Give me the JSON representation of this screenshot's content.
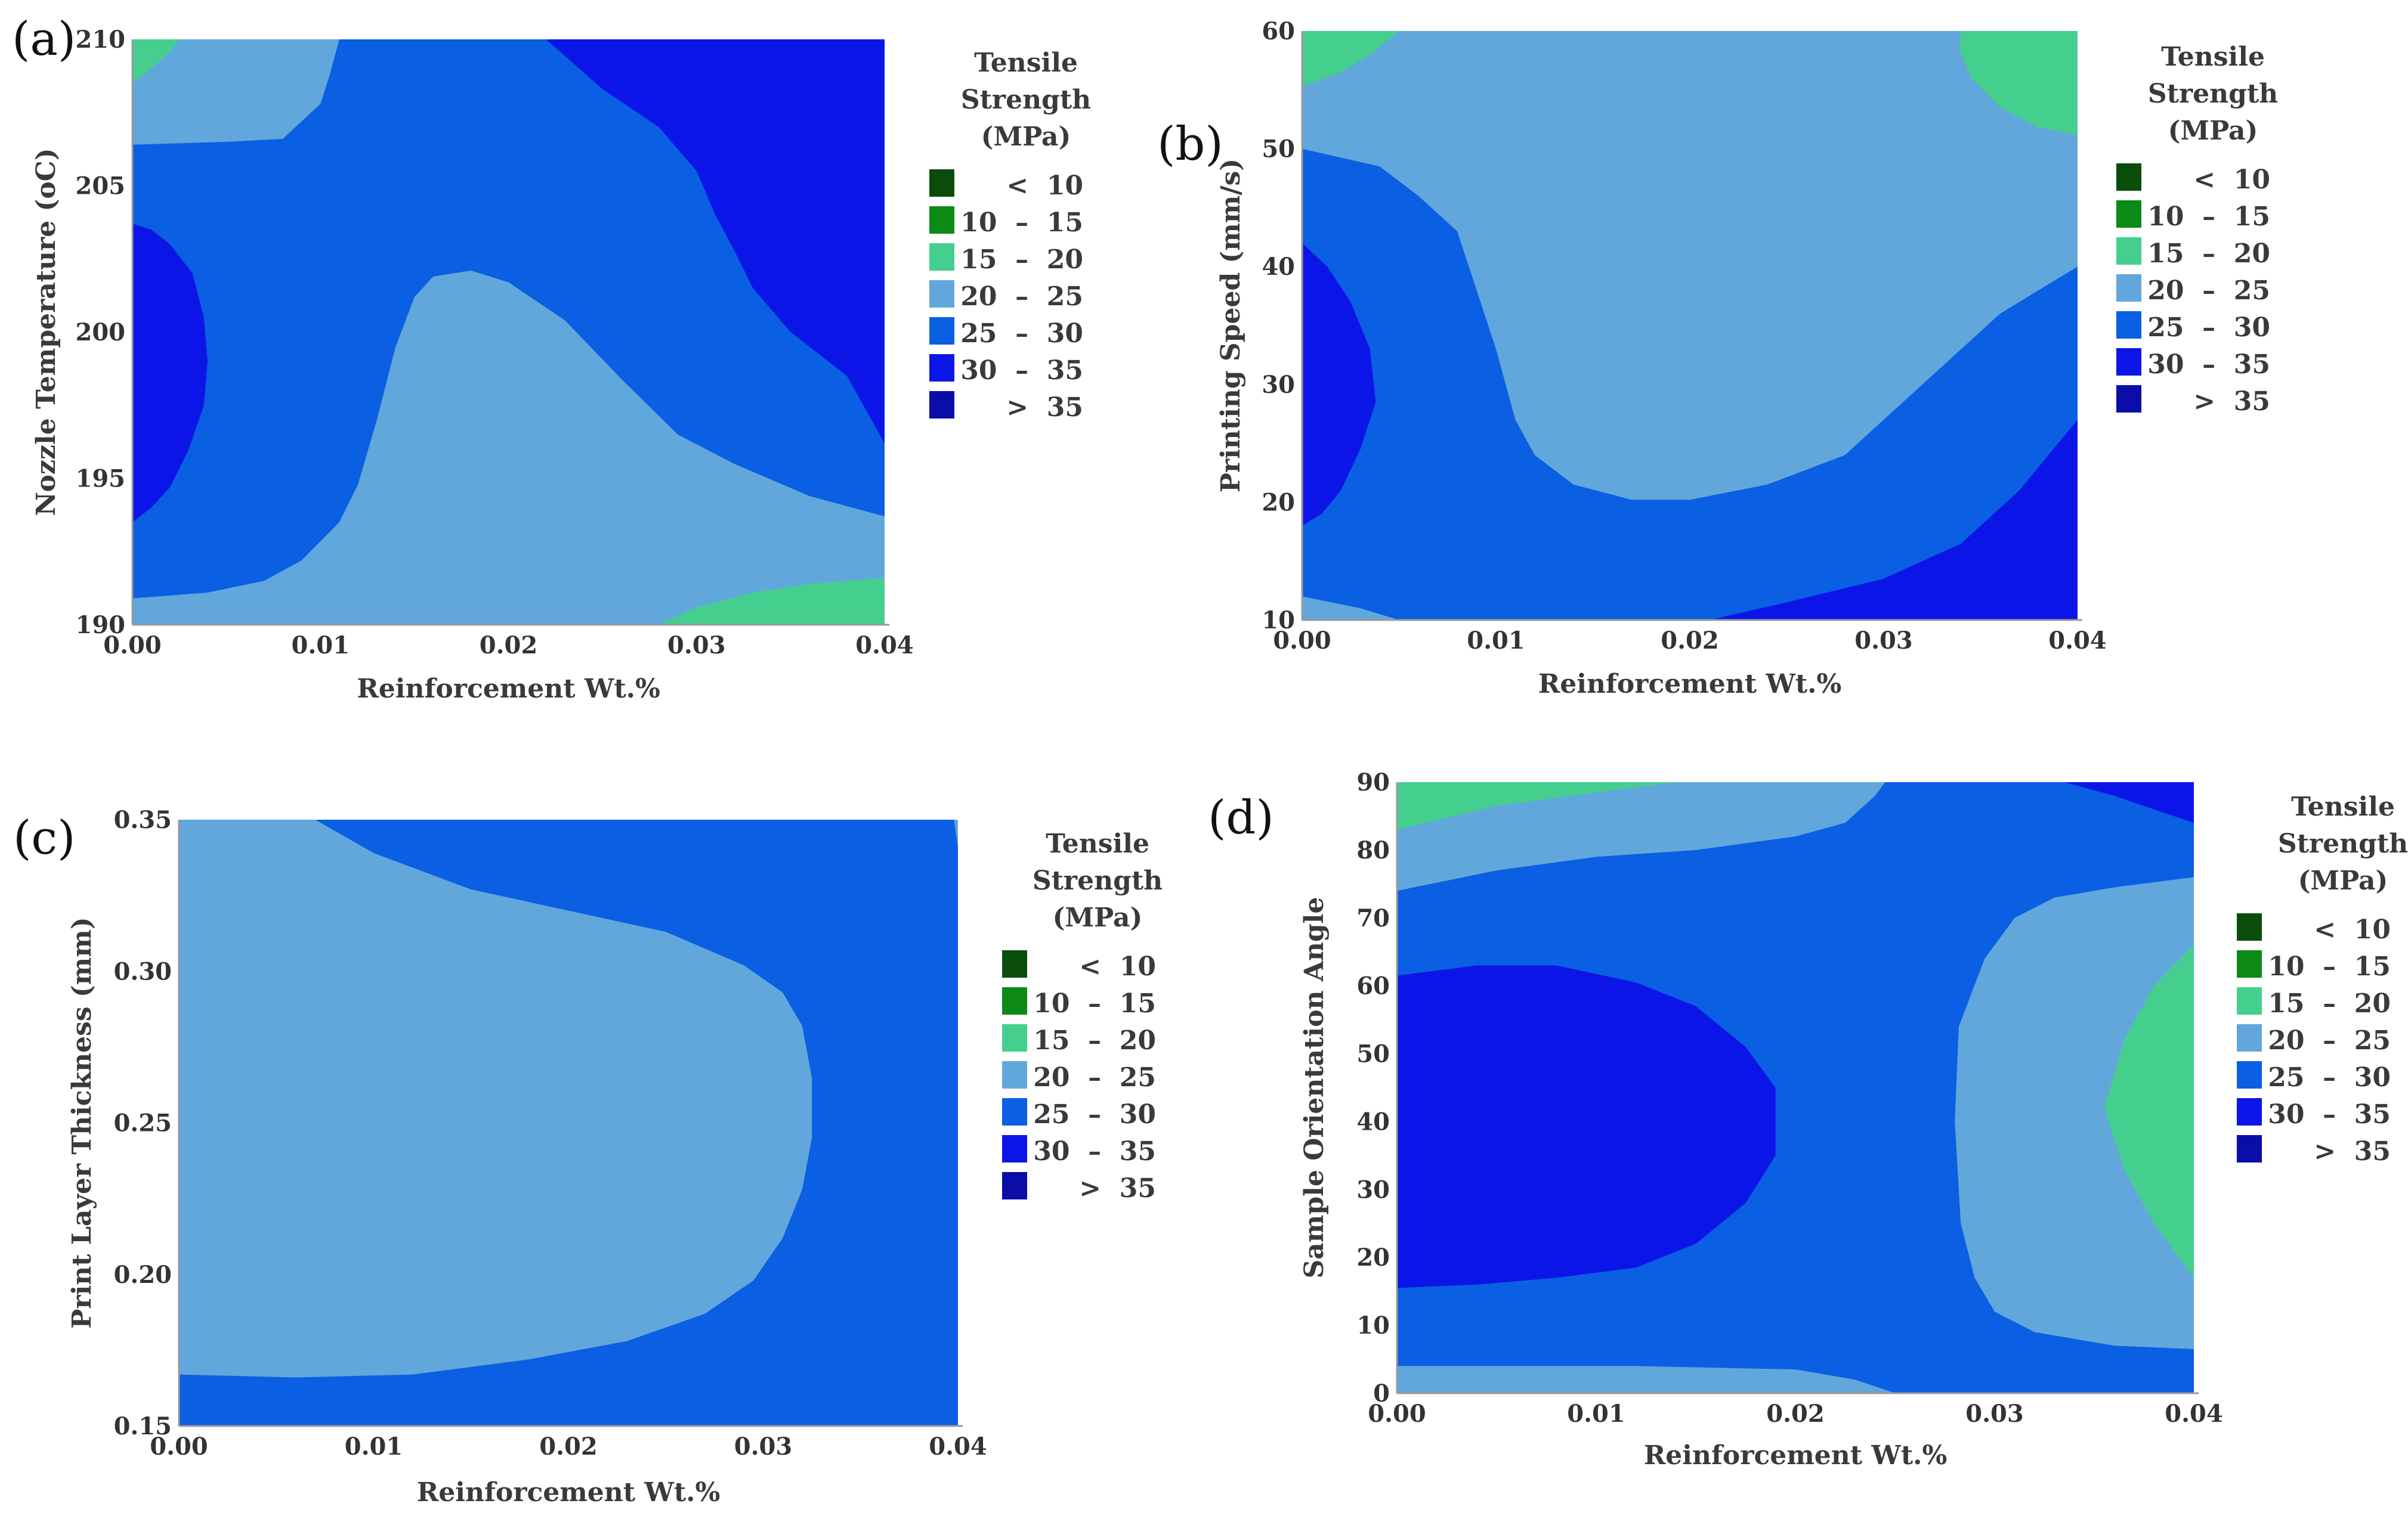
{
  "chart_data": [
    {
      "type": "contour",
      "panel": "(a)",
      "xlabel": "Reinforcement Wt.%",
      "ylabel": "Nozzle Temperature (oC)",
      "x_ticks": [
        "0.00",
        "0.01",
        "0.02",
        "0.03",
        "0.04"
      ],
      "y_ticks": [
        "190",
        "195",
        "200",
        "205",
        "210"
      ],
      "xlim": [
        0,
        0.04
      ],
      "ylim": [
        190,
        210
      ],
      "legend_title": [
        "Tensile",
        "Strength",
        "(MPa)"
      ],
      "regions": [
        {
          "level": "20 – 25",
          "polygon": [
            [
              0,
              190
            ],
            [
              0.04,
              190
            ],
            [
              0.04,
              210
            ],
            [
              0,
              210
            ]
          ]
        },
        {
          "level": "25 – 30",
          "polygon": [
            [
              0,
              190.9
            ],
            [
              0.004,
              191.1
            ],
            [
              0.007,
              191.5
            ],
            [
              0.009,
              192.2
            ],
            [
              0.011,
              193.5
            ],
            [
              0.012,
              194.8
            ],
            [
              0.013,
              197
            ],
            [
              0.014,
              199.5
            ],
            [
              0.015,
              201.2
            ],
            [
              0.016,
              201.9
            ],
            [
              0.018,
              202.1
            ],
            [
              0.02,
              201.7
            ],
            [
              0.023,
              200.4
            ],
            [
              0.026,
              198.4
            ],
            [
              0.029,
              196.5
            ],
            [
              0.032,
              195.5
            ],
            [
              0.036,
              194.4
            ],
            [
              0.04,
              193.7
            ],
            [
              0.04,
              210
            ],
            [
              0.011,
              210
            ],
            [
              0.0105,
              208.8
            ],
            [
              0.01,
              207.8
            ],
            [
              0.008,
              206.6
            ],
            [
              0.005,
              206.5
            ],
            [
              0,
              206.4
            ]
          ]
        },
        {
          "level": "30 – 35",
          "polygon": [
            [
              0.022,
              210
            ],
            [
              0.04,
              210
            ],
            [
              0.04,
              196.2
            ],
            [
              0.038,
              198.5
            ],
            [
              0.035,
              200
            ],
            [
              0.033,
              201.5
            ],
            [
              0.032,
              202.8
            ],
            [
              0.031,
              204
            ],
            [
              0.03,
              205.5
            ],
            [
              0.028,
              207
            ],
            [
              0.025,
              208.3
            ]
          ]
        },
        {
          "level": "30 – 35",
          "polygon": [
            [
              0,
              193.5
            ],
            [
              0.001,
              194
            ],
            [
              0.002,
              194.7
            ],
            [
              0.003,
              196
            ],
            [
              0.0038,
              197.5
            ],
            [
              0.004,
              199
            ],
            [
              0.0038,
              200.5
            ],
            [
              0.0032,
              202
            ],
            [
              0.002,
              203
            ],
            [
              0.001,
              203.5
            ],
            [
              0,
              203.7
            ]
          ]
        },
        {
          "level": "15 – 20",
          "polygon": [
            [
              0,
              208.5
            ],
            [
              0.001,
              209
            ],
            [
              0.002,
              209.6
            ],
            [
              0.0025,
              210
            ],
            [
              0,
              210
            ]
          ]
        },
        {
          "level": "15 – 20",
          "polygon": [
            [
              0.028,
              190
            ],
            [
              0.03,
              190.6
            ],
            [
              0.033,
              191.1
            ],
            [
              0.036,
              191.4
            ],
            [
              0.04,
              191.6
            ],
            [
              0.04,
              190
            ]
          ]
        }
      ]
    },
    {
      "type": "contour",
      "panel": "(b)",
      "xlabel": "Reinforcement Wt.%",
      "ylabel": "Printing Speed (mm/s)",
      "x_ticks": [
        "0.00",
        "0.01",
        "0.02",
        "0.03",
        "0.04"
      ],
      "y_ticks": [
        "10",
        "20",
        "30",
        "40",
        "50",
        "60"
      ],
      "xlim": [
        0,
        0.04
      ],
      "ylim": [
        10,
        60
      ],
      "legend_title": [
        "Tensile",
        "Strength",
        "(MPa)"
      ],
      "regions": [
        {
          "level": "20 – 25",
          "polygon": [
            [
              0,
              10
            ],
            [
              0.04,
              10
            ],
            [
              0.04,
              60
            ],
            [
              0,
              60
            ]
          ]
        },
        {
          "level": "25 – 30",
          "polygon": [
            [
              0,
              12
            ],
            [
              0.003,
              11
            ],
            [
              0.005,
              10
            ],
            [
              0.04,
              10
            ],
            [
              0.04,
              40
            ],
            [
              0.036,
              36
            ],
            [
              0.032,
              30
            ],
            [
              0.028,
              24
            ],
            [
              0.024,
              21.5
            ],
            [
              0.02,
              20.2
            ],
            [
              0.017,
              20.2
            ],
            [
              0.014,
              21.5
            ],
            [
              0.012,
              24
            ],
            [
              0.011,
              27
            ],
            [
              0.01,
              33
            ],
            [
              0.009,
              38
            ],
            [
              0.008,
              43
            ],
            [
              0.006,
              46
            ],
            [
              0.004,
              48.5
            ],
            [
              0,
              50
            ]
          ]
        },
        {
          "level": "30 – 35",
          "polygon": [
            [
              0.021,
              10
            ],
            [
              0.025,
              11.5
            ],
            [
              0.03,
              13.5
            ],
            [
              0.034,
              16.5
            ],
            [
              0.037,
              21
            ],
            [
              0.04,
              27
            ],
            [
              0.04,
              10
            ]
          ]
        },
        {
          "level": "30 – 35",
          "polygon": [
            [
              0,
              18
            ],
            [
              0.001,
              19
            ],
            [
              0.002,
              21
            ],
            [
              0.003,
              24.5
            ],
            [
              0.0038,
              28.5
            ],
            [
              0.0035,
              33
            ],
            [
              0.0025,
              37
            ],
            [
              0.0013,
              40
            ],
            [
              0,
              42
            ]
          ]
        },
        {
          "level": "15 – 20",
          "polygon": [
            [
              0,
              55.3
            ],
            [
              0.002,
              56.5
            ],
            [
              0.0035,
              58
            ],
            [
              0.005,
              60
            ],
            [
              0,
              60
            ]
          ]
        },
        {
          "level": "15 – 20",
          "polygon": [
            [
              0.034,
              60
            ],
            [
              0.0339,
              58.5
            ],
            [
              0.0345,
              56
            ],
            [
              0.036,
              53.5
            ],
            [
              0.038,
              51.8
            ],
            [
              0.04,
              51.2
            ],
            [
              0.04,
              60
            ]
          ]
        }
      ]
    },
    {
      "type": "contour",
      "panel": "(c)",
      "xlabel": "Reinforcement Wt.%",
      "ylabel": "Print Layer Thickness (mm)",
      "x_ticks": [
        "0.00",
        "0.01",
        "0.02",
        "0.03",
        "0.04"
      ],
      "y_ticks": [
        "0.15",
        "0.20",
        "0.25",
        "0.30",
        "0.35"
      ],
      "xlim": [
        0,
        0.04
      ],
      "ylim": [
        0.15,
        0.35
      ],
      "legend_title": [
        "Tensile",
        "Strength",
        "(MPa)"
      ],
      "regions": [
        {
          "level": "25 – 30",
          "polygon": [
            [
              0,
              0.15
            ],
            [
              0.04,
              0.15
            ],
            [
              0.04,
              0.35
            ],
            [
              0,
              0.35
            ]
          ]
        },
        {
          "level": "20 – 25",
          "polygon": [
            [
              0,
              0.35
            ],
            [
              0.007,
              0.35
            ],
            [
              0.01,
              0.339
            ],
            [
              0.015,
              0.327
            ],
            [
              0.02,
              0.32
            ],
            [
              0.025,
              0.313
            ],
            [
              0.029,
              0.302
            ],
            [
              0.031,
              0.293
            ],
            [
              0.032,
              0.282
            ],
            [
              0.0325,
              0.265
            ],
            [
              0.0325,
              0.245
            ],
            [
              0.032,
              0.228
            ],
            [
              0.031,
              0.212
            ],
            [
              0.0295,
              0.198
            ],
            [
              0.027,
              0.187
            ],
            [
              0.023,
              0.178
            ],
            [
              0.018,
              0.172
            ],
            [
              0.012,
              0.167
            ],
            [
              0.006,
              0.166
            ],
            [
              0,
              0.167
            ]
          ]
        },
        {
          "level": "20 – 25",
          "polygon": [
            [
              0.0398,
              0.35
            ],
            [
              0.04,
              0.35
            ],
            [
              0.04,
              0.341
            ]
          ]
        }
      ]
    },
    {
      "type": "contour",
      "panel": "(d)",
      "xlabel": "Reinforcement Wt.%",
      "ylabel": "Sample Orientation Angle",
      "x_ticks": [
        "0.00",
        "0.01",
        "0.02",
        "0.03",
        "0.04"
      ],
      "y_ticks": [
        "0",
        "10",
        "20",
        "30",
        "40",
        "50",
        "60",
        "70",
        "80",
        "90"
      ],
      "xlim": [
        0,
        0.04
      ],
      "ylim": [
        0,
        90
      ],
      "legend_title": [
        "Tensile",
        "Strength",
        "(MPa)"
      ],
      "regions": [
        {
          "level": "25 – 30",
          "polygon": [
            [
              0,
              0
            ],
            [
              0.04,
              0
            ],
            [
              0.04,
              90
            ],
            [
              0,
              90
            ]
          ]
        },
        {
          "level": "20 – 25",
          "polygon": [
            [
              0,
              90
            ],
            [
              0.0245,
              90
            ],
            [
              0.024,
              88
            ],
            [
              0.0225,
              84
            ],
            [
              0.02,
              82
            ],
            [
              0.015,
              80
            ],
            [
              0.01,
              79
            ],
            [
              0.005,
              77
            ],
            [
              0,
              74
            ]
          ]
        },
        {
          "level": "20 – 25",
          "polygon": [
            [
              0,
              0
            ],
            [
              0.025,
              0
            ],
            [
              0.023,
              2
            ],
            [
              0.02,
              3.5
            ],
            [
              0.012,
              4
            ],
            [
              0,
              4
            ]
          ]
        },
        {
          "level": "20 – 25",
          "polygon": [
            [
              0.04,
              76
            ],
            [
              0.036,
              74.5
            ],
            [
              0.033,
              73
            ],
            [
              0.031,
              70
            ],
            [
              0.0295,
              64
            ],
            [
              0.0282,
              54
            ],
            [
              0.028,
              40
            ],
            [
              0.0283,
              25
            ],
            [
              0.029,
              17
            ],
            [
              0.03,
              12
            ],
            [
              0.032,
              9
            ],
            [
              0.036,
              7
            ],
            [
              0.04,
              6.5
            ]
          ]
        },
        {
          "level": "30 – 35",
          "polygon": [
            [
              0,
              15.5
            ],
            [
              0.004,
              16
            ],
            [
              0.008,
              17
            ],
            [
              0.012,
              18.5
            ],
            [
              0.015,
              22
            ],
            [
              0.0175,
              28
            ],
            [
              0.019,
              35
            ],
            [
              0.019,
              45
            ],
            [
              0.0175,
              51
            ],
            [
              0.015,
              57
            ],
            [
              0.012,
              60.5
            ],
            [
              0.008,
              63
            ],
            [
              0.004,
              63
            ],
            [
              0,
              61.5
            ]
          ]
        },
        {
          "level": "30 – 35",
          "polygon": [
            [
              0.0335,
              90
            ],
            [
              0.036,
              88
            ],
            [
              0.038,
              86
            ],
            [
              0.04,
              84
            ],
            [
              0.04,
              90
            ]
          ]
        },
        {
          "level": "15 – 20",
          "polygon": [
            [
              0,
              90
            ],
            [
              0.014,
              90
            ],
            [
              0.01,
              88.5
            ],
            [
              0.005,
              86.5
            ],
            [
              0,
              83
            ]
          ]
        },
        {
          "level": "15 – 20",
          "polygon": [
            [
              0.04,
              66
            ],
            [
              0.038,
              60
            ],
            [
              0.0365,
              52
            ],
            [
              0.0355,
              42
            ],
            [
              0.0365,
              33
            ],
            [
              0.038,
              25
            ],
            [
              0.04,
              17
            ]
          ]
        }
      ]
    }
  ],
  "legend_items": [
    {
      "range": "<  10",
      "color": "#0a4d0a"
    },
    {
      "range": "10  –  15",
      "color": "#0d8a16"
    },
    {
      "range": "15  –  20",
      "color": "#45cf8e"
    },
    {
      "range": "20  –  25",
      "color": "#62a7db"
    },
    {
      "range": "25  –  30",
      "color": "#0a5fe2"
    },
    {
      "range": "30  –  35",
      "color": "#0c15e8"
    },
    {
      "range": ">  35",
      "color": "#0a0da8"
    }
  ]
}
